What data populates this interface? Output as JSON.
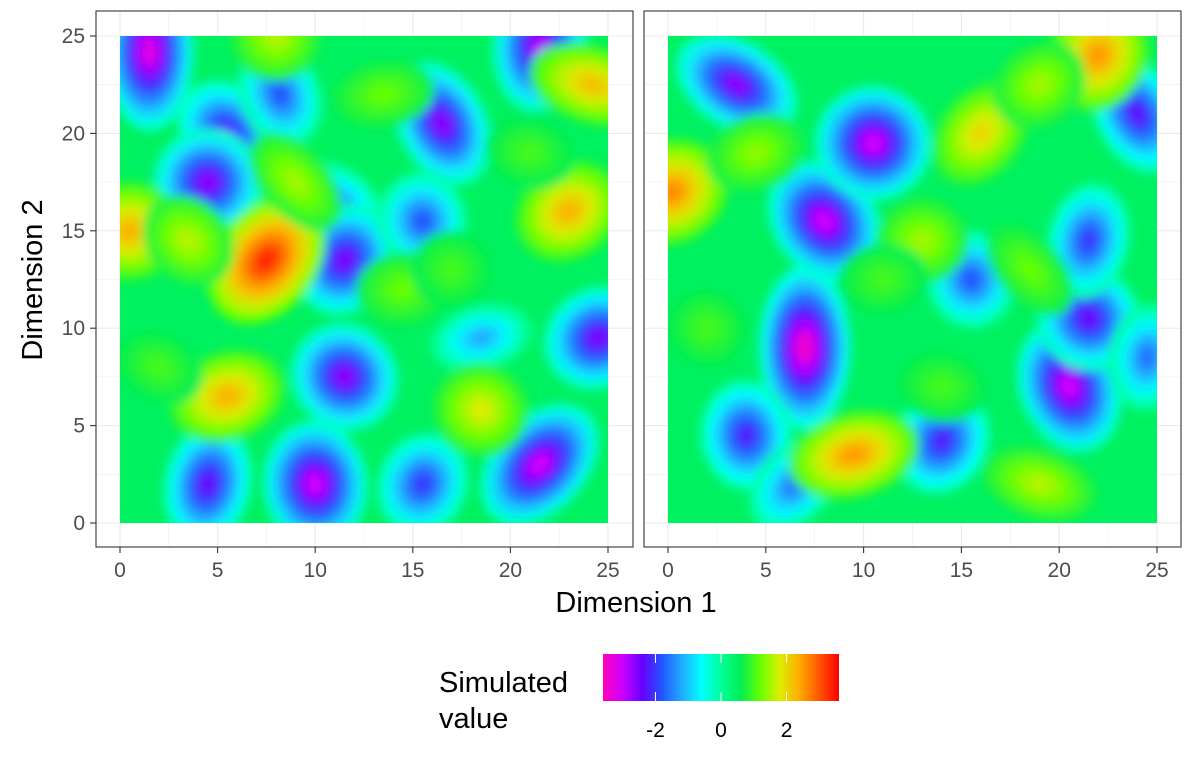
{
  "chart_data": {
    "type": "heatmap",
    "xlabel": "Dimension 1",
    "ylabel": "Dimension 2",
    "xlim": [
      0,
      25
    ],
    "ylim": [
      0,
      25
    ],
    "x_ticks": [
      0,
      5,
      10,
      15,
      20,
      25
    ],
    "y_ticks": [
      0,
      5,
      10,
      15,
      20,
      25
    ],
    "grid": true,
    "theme": "black-and-white",
    "colormap": [
      "#ff00bb",
      "#cc00ff",
      "#6600ff",
      "#2255ff",
      "#22aaff",
      "#00ffff",
      "#00ff99",
      "#00ee55",
      "#66ff00",
      "#ddee00",
      "#ffaa00",
      "#ff5500",
      "#ff0000"
    ],
    "legend": {
      "title_lines": [
        "Simulated",
        "value"
      ],
      "position": "bottom",
      "min": -3.6,
      "max": 3.6,
      "tick_values": [
        -2,
        0,
        2
      ],
      "tick_labels": [
        "-2",
        "0",
        "2"
      ]
    },
    "panels": [
      {
        "name": "",
        "features": [
          {
            "x": 1.5,
            "y": 24.2,
            "value": -3.2
          },
          {
            "x": 5.5,
            "y": 20.0,
            "value": -2.3
          },
          {
            "x": 4.5,
            "y": 17.5,
            "value": -2.6
          },
          {
            "x": 8.2,
            "y": 22.0,
            "value": -1.8
          },
          {
            "x": 11.0,
            "y": 16.5,
            "value": -1.5
          },
          {
            "x": 10.0,
            "y": 2.0,
            "value": -3.0
          },
          {
            "x": 11.5,
            "y": 7.5,
            "value": -2.6
          },
          {
            "x": 4.5,
            "y": 2.0,
            "value": -2.4
          },
          {
            "x": 16.5,
            "y": 20.5,
            "value": -2.6
          },
          {
            "x": 11.5,
            "y": 13.5,
            "value": -2.5
          },
          {
            "x": 15.5,
            "y": 15.5,
            "value": -1.8
          },
          {
            "x": 21.5,
            "y": 3.0,
            "value": -3.0
          },
          {
            "x": 21.5,
            "y": 24.5,
            "value": -2.8
          },
          {
            "x": 24.5,
            "y": 9.5,
            "value": -2.5
          },
          {
            "x": 15.5,
            "y": 2.0,
            "value": -2.0
          },
          {
            "x": 18.5,
            "y": 9.5,
            "value": -1.2
          },
          {
            "x": 7.5,
            "y": 13.5,
            "value": 3.3
          },
          {
            "x": 0.5,
            "y": 15.0,
            "value": 2.3
          },
          {
            "x": 23.0,
            "y": 16.0,
            "value": 2.3
          },
          {
            "x": 24.2,
            "y": 22.5,
            "value": 2.2
          },
          {
            "x": 5.5,
            "y": 6.5,
            "value": 2.3
          },
          {
            "x": 18.5,
            "y": 5.8,
            "value": 1.8
          },
          {
            "x": 14.5,
            "y": 12.0,
            "value": 1.2
          },
          {
            "x": 9.0,
            "y": 17.5,
            "value": 1.5
          },
          {
            "x": 21.0,
            "y": 19.0,
            "value": 1.0
          },
          {
            "x": 8.0,
            "y": 25.0,
            "value": 1.6
          },
          {
            "x": 2.0,
            "y": 8.0,
            "value": 1.0
          },
          {
            "x": 13.5,
            "y": 22.0,
            "value": 1.2
          },
          {
            "x": 3.5,
            "y": 14.5,
            "value": 1.6
          },
          {
            "x": 17.0,
            "y": 13.0,
            "value": 1.0
          }
        ]
      },
      {
        "name": "",
        "features": [
          {
            "x": 7.0,
            "y": 9.0,
            "value": -3.4
          },
          {
            "x": 8.0,
            "y": 15.5,
            "value": -3.0
          },
          {
            "x": 10.5,
            "y": 19.5,
            "value": -3.0
          },
          {
            "x": 20.5,
            "y": 7.0,
            "value": -3.0
          },
          {
            "x": 3.5,
            "y": 22.5,
            "value": -2.6
          },
          {
            "x": 4.0,
            "y": 4.5,
            "value": -2.2
          },
          {
            "x": 21.5,
            "y": 10.5,
            "value": -2.4
          },
          {
            "x": 21.5,
            "y": 14.5,
            "value": -2.0
          },
          {
            "x": 24.0,
            "y": 21.0,
            "value": -2.3
          },
          {
            "x": 14.0,
            "y": 4.2,
            "value": -2.2
          },
          {
            "x": 15.5,
            "y": 12.5,
            "value": -1.8
          },
          {
            "x": 6.5,
            "y": 2.0,
            "value": -1.6
          },
          {
            "x": 24.5,
            "y": 8.5,
            "value": -1.6
          },
          {
            "x": 0.2,
            "y": 17.0,
            "value": 2.6
          },
          {
            "x": 22.0,
            "y": 24.0,
            "value": 2.5
          },
          {
            "x": 9.5,
            "y": 3.5,
            "value": 2.5
          },
          {
            "x": 16.0,
            "y": 20.0,
            "value": 2.0
          },
          {
            "x": 13.0,
            "y": 14.5,
            "value": 1.5
          },
          {
            "x": 19.0,
            "y": 22.5,
            "value": 1.5
          },
          {
            "x": 19.0,
            "y": 2.0,
            "value": 1.6
          },
          {
            "x": 4.5,
            "y": 19.0,
            "value": 1.4
          },
          {
            "x": 2.0,
            "y": 10.0,
            "value": 1.0
          },
          {
            "x": 11.0,
            "y": 12.5,
            "value": 1.0
          },
          {
            "x": 18.5,
            "y": 13.0,
            "value": 1.2
          },
          {
            "x": 14.0,
            "y": 7.0,
            "value": 1.0
          }
        ]
      }
    ]
  }
}
